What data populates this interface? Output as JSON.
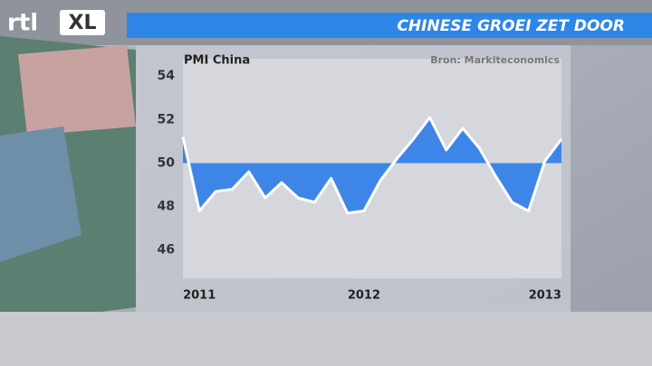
{
  "brand": {
    "rtl": "rtl",
    "xl": "XL"
  },
  "chart_data": {
    "type": "line",
    "title": "CHINESE GROEI ZET DOOR",
    "ylabel": "PMI China",
    "source": "Bron: Markiteconomics",
    "categories": [
      null,
      "2011",
      null,
      null,
      null,
      null,
      null,
      null,
      null,
      null,
      null,
      "2012",
      null,
      null,
      null,
      null,
      null,
      null,
      null,
      null,
      null,
      null,
      "2013",
      null
    ],
    "series": [
      {
        "name": "PMI China",
        "color": "#ffffff",
        "fill": "#3d86e8",
        "values": [
          51.2,
          47.8,
          48.7,
          48.8,
          49.6,
          48.4,
          49.1,
          48.4,
          48.2,
          49.3,
          47.7,
          47.8,
          49.2,
          50.2,
          51.1,
          52.1,
          50.6,
          51.6,
          50.7,
          49.4,
          48.2,
          47.8,
          50.1,
          51.1
        ]
      }
    ],
    "fill_between": 50,
    "ylim": [
      44.7,
      54.8
    ],
    "yticks": [
      46,
      48,
      50,
      52,
      54
    ],
    "grid": false
  }
}
